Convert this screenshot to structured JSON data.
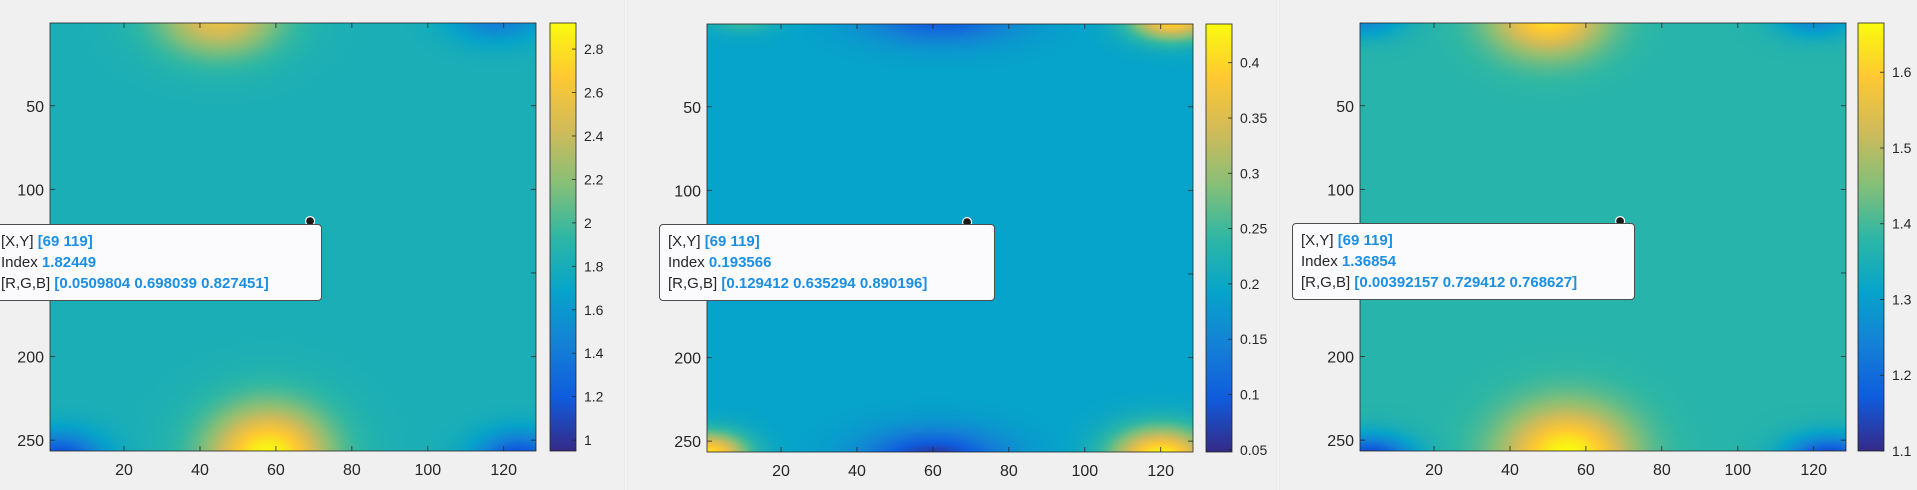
{
  "colors": {
    "parula": [
      "#352a87",
      "#0f5cdd",
      "#1481d6",
      "#06a4ca",
      "#2eb7a4",
      "#87bf77",
      "#d1bb59",
      "#fec832",
      "#f9fb0e"
    ],
    "tooltip_value": "#1a8fe3"
  },
  "chart_data": [
    {
      "type": "heatmap",
      "colormap": "parula",
      "xlim": [
        1,
        128
      ],
      "ylim": [
        1,
        256
      ],
      "x_ticks": [
        20,
        40,
        60,
        80,
        100,
        120
      ],
      "y_ticks": [
        50,
        100,
        150,
        200,
        250
      ],
      "y_tick_labels": [
        "50",
        "100",
        "",
        "200",
        "250"
      ],
      "clim": [
        0.95,
        2.92
      ],
      "colorbar_ticks": [
        1,
        1.2,
        1.4,
        1.6,
        1.8,
        2,
        2.2,
        2.4,
        2.6,
        2.8
      ],
      "field": {
        "base": 1.82,
        "sources": [
          {
            "x": 58,
            "y": 260,
            "amp": 1.1,
            "sx": 16,
            "sy": 30
          },
          {
            "x": 45,
            "y": -4,
            "amp": 0.75,
            "sx": 16,
            "sy": 24
          },
          {
            "x": 3,
            "y": 262,
            "amp": -0.75,
            "sx": 11,
            "sy": 16
          },
          {
            "x": 124,
            "y": 262,
            "amp": -0.75,
            "sx": 11,
            "sy": 16
          },
          {
            "x": 118,
            "y": -5,
            "amp": -0.45,
            "sx": 12,
            "sy": 16
          }
        ]
      },
      "datatip": {
        "marker": [
          69,
          119
        ],
        "xy_label": "[X,Y]",
        "xy": "[69 119]",
        "index_label": "Index",
        "index": "1.82449",
        "rgb_label": "[R,G,B]",
        "rgb": "[0.0509804 0.698039 0.827451]"
      }
    },
    {
      "type": "heatmap",
      "colormap": "parula",
      "xlim": [
        1,
        128
      ],
      "ylim": [
        1,
        256
      ],
      "x_ticks": [
        20,
        40,
        60,
        80,
        100,
        120
      ],
      "y_ticks": [
        50,
        100,
        150,
        200,
        250
      ],
      "y_tick_labels": [
        "50",
        "100",
        "",
        "200",
        "250"
      ],
      "clim": [
        0.048,
        0.435
      ],
      "colorbar_ticks": [
        0.05,
        0.1,
        0.15,
        0.2,
        0.25,
        0.3,
        0.35,
        0.4
      ],
      "field": {
        "base": 0.193,
        "sources": [
          {
            "x": 120,
            "y": 260,
            "amp": 0.24,
            "sx": 13,
            "sy": 18
          },
          {
            "x": 1,
            "y": 258,
            "amp": 0.22,
            "sx": 10,
            "sy": 13
          },
          {
            "x": 123,
            "y": -3,
            "amp": 0.22,
            "sx": 11,
            "sy": 13
          },
          {
            "x": 60,
            "y": 262,
            "amp": -0.14,
            "sx": 18,
            "sy": 18
          },
          {
            "x": 10,
            "y": -4,
            "amp": 0.07,
            "sx": 9,
            "sy": 9
          },
          {
            "x": 62,
            "y": -4,
            "amp": -0.1,
            "sx": 20,
            "sy": 16
          }
        ]
      },
      "datatip": {
        "marker": [
          69,
          119
        ],
        "xy_label": "[X,Y]",
        "xy": "[69 119]",
        "index_label": "Index",
        "index": "0.193566",
        "rgb_label": "[R,G,B]",
        "rgb": "[0.129412 0.635294 0.890196]"
      }
    },
    {
      "type": "heatmap",
      "colormap": "parula",
      "xlim": [
        1,
        128
      ],
      "ylim": [
        1,
        256
      ],
      "x_ticks": [
        20,
        40,
        60,
        80,
        100,
        120
      ],
      "y_ticks": [
        50,
        100,
        150,
        200,
        250
      ],
      "y_tick_labels": [
        "50",
        "100",
        "",
        "200",
        "250"
      ],
      "clim": [
        1.1,
        1.665
      ],
      "colorbar_ticks": [
        1.1,
        1.2,
        1.3,
        1.4,
        1.5,
        1.6
      ],
      "field": {
        "base": 1.37,
        "sources": [
          {
            "x": 55,
            "y": 260,
            "amp": 0.3,
            "sx": 17,
            "sy": 30
          },
          {
            "x": 50,
            "y": -4,
            "amp": 0.26,
            "sx": 15,
            "sy": 24
          },
          {
            "x": 3,
            "y": 262,
            "amp": -0.26,
            "sx": 11,
            "sy": 14
          },
          {
            "x": 124,
            "y": 262,
            "amp": -0.26,
            "sx": 11,
            "sy": 14
          },
          {
            "x": 2,
            "y": -3,
            "amp": -0.12,
            "sx": 10,
            "sy": 12
          },
          {
            "x": 120,
            "y": -3,
            "amp": -0.12,
            "sx": 10,
            "sy": 12
          }
        ]
      },
      "datatip": {
        "marker": [
          69,
          119
        ],
        "xy_label": "[X,Y]",
        "xy": "[69 119]",
        "index_label": "Index",
        "index": "1.36854",
        "rgb_label": "[R,G,B]",
        "rgb": "[0.00392157 0.729412 0.768627]"
      }
    }
  ]
}
